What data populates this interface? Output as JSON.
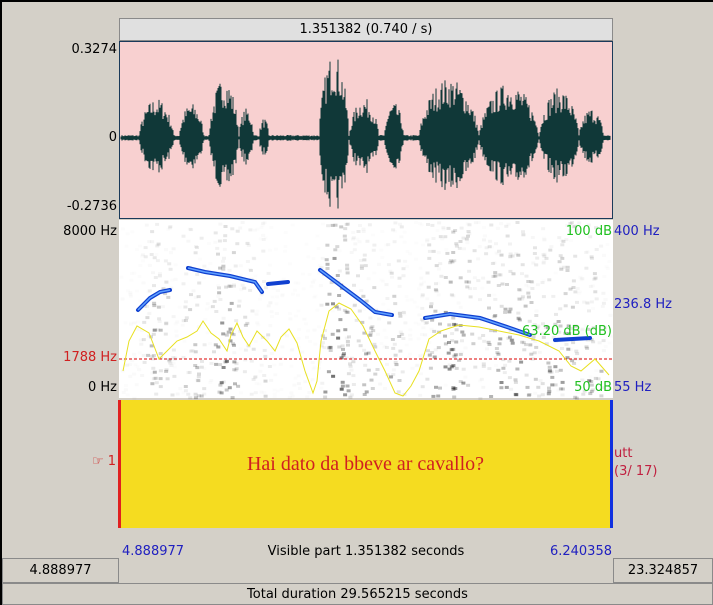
{
  "header": {
    "selection": "1.351382 (0.740 / s)"
  },
  "waveform": {
    "top_label": "0.3274",
    "zero_label": "0",
    "bottom_label": "-0.2736"
  },
  "spectrogram": {
    "top_freq": "8000 Hz",
    "cursor_freq": "1788 Hz",
    "bottom_freq": "0 Hz",
    "intensity_top": "100 dB",
    "pitch_top": "400 Hz",
    "pitch_cursor": "236.8 Hz",
    "intensity_cursor": "63.20 dB (dB)",
    "intensity_bottom": "50 dB",
    "pitch_bottom": "55 Hz"
  },
  "tier": {
    "marker": "☞ 1",
    "text": "Hai dato da bbeve ar cavallo?",
    "name": "utt",
    "count": "(3/ 17)"
  },
  "footer": {
    "visible_start": "4.888977",
    "visible_label": "Visible part 1.351382 seconds",
    "visible_end": "6.240358",
    "window_start": "4.888977",
    "window_end": "23.324857",
    "total": "Total duration 29.565215 seconds"
  }
}
